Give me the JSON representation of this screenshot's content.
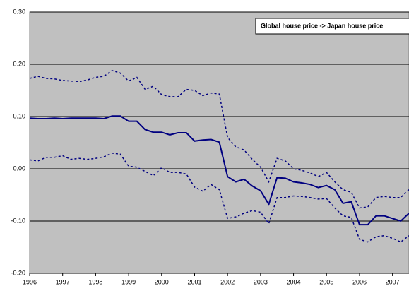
{
  "chart_data": {
    "type": "line",
    "annotation": "Global house price -> Japan house price",
    "x": [
      1996,
      1996.25,
      1996.5,
      1996.75,
      1997,
      1997.25,
      1997.5,
      1997.75,
      1998,
      1998.25,
      1998.5,
      1998.75,
      1999,
      1999.25,
      1999.5,
      1999.75,
      2000,
      2000.25,
      2000.5,
      2000.75,
      2001,
      2001.25,
      2001.5,
      2001.75,
      2002,
      2002.25,
      2002.5,
      2002.75,
      2003,
      2003.25,
      2003.5,
      2003.75,
      2004,
      2004.25,
      2004.5,
      2004.75,
      2005,
      2005.25,
      2005.5,
      2005.75,
      2006,
      2006.25,
      2006.5,
      2006.75,
      2007,
      2007.25,
      2007.5
    ],
    "series": [
      {
        "color": "#000080",
        "dash": false,
        "values": [
          0.097,
          0.096,
          0.096,
          0.097,
          0.096,
          0.097,
          0.097,
          0.097,
          0.097,
          0.096,
          0.101,
          0.101,
          0.091,
          0.091,
          0.075,
          0.07,
          0.07,
          0.065,
          0.069,
          0.069,
          0.053,
          0.055,
          0.056,
          0.051,
          -0.015,
          -0.025,
          -0.02,
          -0.033,
          -0.042,
          -0.068,
          -0.017,
          -0.018,
          -0.025,
          -0.027,
          -0.03,
          -0.036,
          -0.032,
          -0.04,
          -0.066,
          -0.063,
          -0.107,
          -0.107,
          -0.09,
          -0.09,
          -0.095,
          -0.1,
          -0.085
        ]
      },
      {
        "color": "#000080",
        "dash": true,
        "values": [
          0.173,
          0.177,
          0.173,
          0.172,
          0.169,
          0.168,
          0.167,
          0.17,
          0.175,
          0.177,
          0.188,
          0.183,
          0.168,
          0.175,
          0.152,
          0.158,
          0.142,
          0.138,
          0.138,
          0.152,
          0.15,
          0.14,
          0.145,
          0.143,
          0.06,
          0.042,
          0.036,
          0.018,
          0.003,
          -0.025,
          0.02,
          0.015,
          0.0,
          -0.003,
          -0.008,
          -0.015,
          -0.007,
          -0.025,
          -0.04,
          -0.045,
          -0.075,
          -0.073,
          -0.055,
          -0.053,
          -0.055,
          -0.055,
          -0.04
        ]
      },
      {
        "color": "#000080",
        "dash": true,
        "values": [
          0.017,
          0.015,
          0.022,
          0.022,
          0.025,
          0.018,
          0.02,
          0.018,
          0.02,
          0.023,
          0.03,
          0.028,
          0.005,
          0.003,
          -0.005,
          -0.013,
          0.002,
          -0.007,
          -0.007,
          -0.01,
          -0.035,
          -0.043,
          -0.03,
          -0.04,
          -0.095,
          -0.092,
          -0.085,
          -0.08,
          -0.083,
          -0.105,
          -0.055,
          -0.055,
          -0.052,
          -0.053,
          -0.055,
          -0.058,
          -0.057,
          -0.075,
          -0.09,
          -0.093,
          -0.135,
          -0.14,
          -0.13,
          -0.128,
          -0.133,
          -0.14,
          -0.128
        ]
      }
    ],
    "xlim": [
      1996,
      2007.5
    ],
    "xticks": [
      1996,
      1997,
      1998,
      1999,
      2000,
      2001,
      2002,
      2003,
      2004,
      2005,
      2006,
      2007
    ],
    "ylim": [
      -0.2,
      0.3
    ],
    "yticks": [
      {
        "value": -0.2,
        "label": "-0.20"
      },
      {
        "value": -0.1,
        "label": "-0.10"
      },
      {
        "value": 0,
        "label": "0.00"
      },
      {
        "value": 0.1,
        "label": "0.10"
      },
      {
        "value": 0.2,
        "label": "0.20"
      },
      {
        "value": 0.3,
        "label": "0.30"
      }
    ],
    "grid": true,
    "background": "#c0c0c0"
  }
}
